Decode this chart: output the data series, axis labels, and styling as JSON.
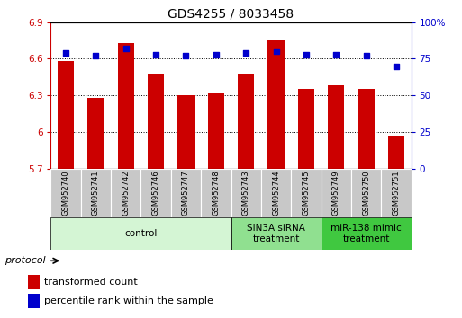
{
  "title": "GDS4255 / 8033458",
  "samples": [
    "GSM952740",
    "GSM952741",
    "GSM952742",
    "GSM952746",
    "GSM952747",
    "GSM952748",
    "GSM952743",
    "GSM952744",
    "GSM952745",
    "GSM952749",
    "GSM952750",
    "GSM952751"
  ],
  "red_values": [
    6.58,
    6.28,
    6.73,
    6.48,
    6.3,
    6.32,
    6.48,
    6.76,
    6.35,
    6.38,
    6.35,
    5.97
  ],
  "blue_values": [
    79,
    77,
    82,
    78,
    77,
    78,
    79,
    80,
    78,
    78,
    77,
    70
  ],
  "ylim_left": [
    5.7,
    6.9
  ],
  "ylim_right": [
    0,
    100
  ],
  "yticks_left": [
    5.7,
    6.0,
    6.3,
    6.6,
    6.9
  ],
  "ytick_labels_left": [
    "5.7",
    "6",
    "6.3",
    "6.6",
    "6.9"
  ],
  "yticks_right": [
    0,
    25,
    50,
    75,
    100
  ],
  "ytick_labels_right": [
    "0",
    "25",
    "50",
    "75",
    "100%"
  ],
  "hlines": [
    6.0,
    6.3,
    6.6
  ],
  "bar_color": "#cc0000",
  "dot_color": "#0000cc",
  "bar_bottom": 5.7,
  "groups": [
    {
      "label": "control",
      "start": 0,
      "end": 6,
      "color": "#d4f5d4"
    },
    {
      "label": "SIN3A siRNA\ntreatment",
      "start": 6,
      "end": 9,
      "color": "#90e090"
    },
    {
      "label": "miR-138 mimic\ntreatment",
      "start": 9,
      "end": 12,
      "color": "#40c840"
    }
  ],
  "legend_items": [
    {
      "label": "transformed count",
      "color": "#cc0000"
    },
    {
      "label": "percentile rank within the sample",
      "color": "#0000cc"
    }
  ],
  "protocol_label": "protocol",
  "title_fontsize": 10,
  "tick_fontsize": 7.5,
  "sample_fontsize": 6.0,
  "group_fontsize": 7.5,
  "legend_fontsize": 8
}
